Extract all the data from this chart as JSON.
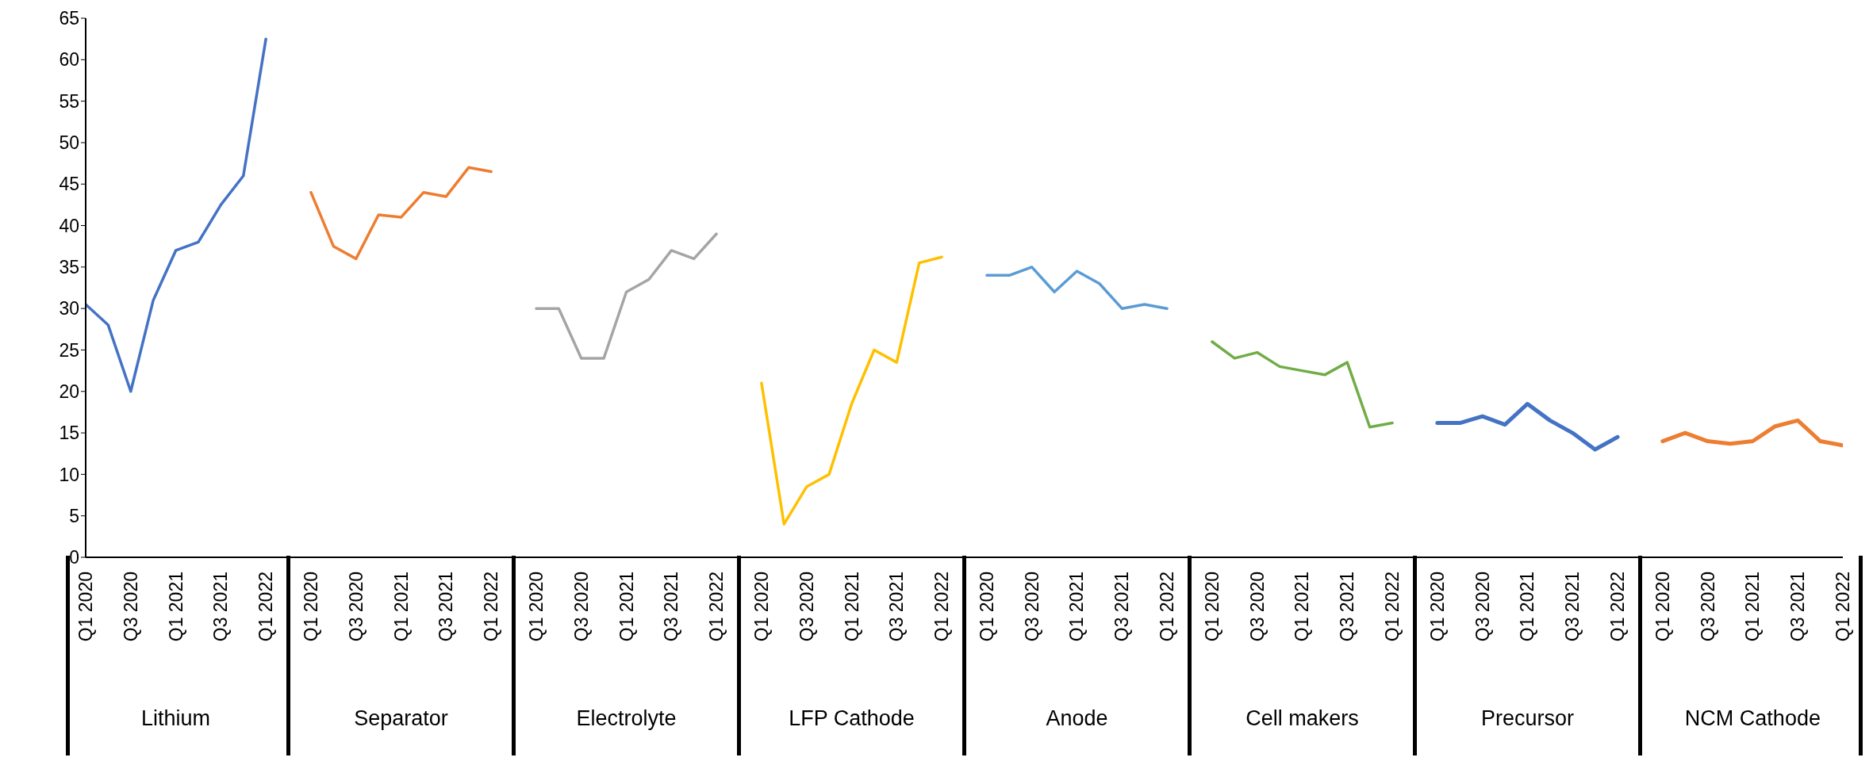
{
  "chart_data": {
    "type": "line",
    "categories": [
      "Q1 2020",
      null,
      "Q3 2020",
      null,
      "Q1 2021",
      null,
      "Q3 2021",
      null,
      "Q1 2022",
      null,
      "Q1 2020",
      null,
      "Q3 2020",
      null,
      "Q1 2021",
      null,
      "Q3 2021",
      null,
      "Q1 2022",
      null,
      "Q1 2020",
      null,
      "Q3 2020",
      null,
      "Q1 2021",
      null,
      "Q3 2021",
      null,
      "Q1 2022",
      null,
      "Q1 2020",
      null,
      "Q3 2020",
      null,
      "Q1 2021",
      null,
      "Q3 2021",
      null,
      "Q1 2022",
      null,
      "Q1 2020",
      null,
      "Q3 2020",
      null,
      "Q1 2021",
      null,
      "Q3 2021",
      null,
      "Q1 2022",
      null,
      "Q1 2020",
      null,
      "Q3 2020",
      null,
      "Q1 2021",
      null,
      "Q3 2021",
      null,
      "Q1 2022",
      null,
      "Q1 2020",
      null,
      "Q3 2020",
      null,
      "Q1 2021",
      null,
      "Q3 2021",
      null,
      "Q1 2022",
      null,
      "Q1 2020",
      null,
      "Q3 2020",
      null,
      "Q1 2021",
      null,
      "Q3 2021",
      null,
      "Q1 2022"
    ],
    "series": [
      {
        "color": "#4472c4",
        "values": [
          30.5,
          28,
          20,
          31,
          37,
          38,
          42.5,
          46,
          62.5,
          null,
          null,
          null,
          null,
          null,
          null,
          null,
          null,
          null,
          null,
          null,
          null,
          null,
          null,
          null,
          null,
          null,
          null,
          null,
          null,
          null,
          null,
          null,
          null,
          null,
          null,
          null,
          null,
          null,
          null,
          null,
          null,
          null,
          null,
          null,
          null,
          null,
          null,
          null,
          null,
          null,
          null,
          null,
          null,
          null,
          null,
          null,
          null,
          null,
          null,
          null,
          null,
          null,
          null,
          null,
          null,
          null,
          null,
          null,
          null,
          null,
          null,
          null,
          null,
          null,
          null,
          null,
          null,
          null,
          null
        ]
      },
      {
        "color": "#ed7d31",
        "values": [
          null,
          null,
          null,
          null,
          null,
          null,
          null,
          null,
          null,
          null,
          44,
          37.5,
          36,
          41.3,
          41,
          44,
          43.5,
          47,
          46.5,
          null,
          null,
          null,
          null,
          null,
          null,
          null,
          null,
          null,
          null,
          null,
          null,
          null,
          null,
          null,
          null,
          null,
          null,
          null,
          null,
          null,
          null,
          null,
          null,
          null,
          null,
          null,
          null,
          null,
          null,
          null,
          null,
          null,
          null,
          null,
          null,
          null,
          null,
          null,
          null,
          null,
          null,
          null,
          null,
          null,
          null,
          null,
          null,
          null,
          null,
          null,
          null,
          null,
          null,
          null,
          null,
          null,
          null,
          null,
          null
        ]
      },
      {
        "color": "#a5a5a5",
        "values": [
          null,
          null,
          null,
          null,
          null,
          null,
          null,
          null,
          null,
          null,
          null,
          null,
          null,
          null,
          null,
          null,
          null,
          null,
          null,
          null,
          30,
          30,
          24,
          24,
          32,
          33.5,
          37,
          36,
          39,
          null,
          null,
          null,
          null,
          null,
          null,
          null,
          null,
          null,
          null,
          null,
          null,
          null,
          null,
          null,
          null,
          null,
          null,
          null,
          null,
          null,
          null,
          null,
          null,
          null,
          null,
          null,
          null,
          null,
          null,
          null,
          null,
          null,
          null,
          null,
          null,
          null,
          null,
          null,
          null,
          null,
          null,
          null,
          null,
          null,
          null,
          null,
          null,
          null,
          null
        ]
      },
      {
        "color": "#ffc000",
        "values": [
          null,
          null,
          null,
          null,
          null,
          null,
          null,
          null,
          null,
          null,
          null,
          null,
          null,
          null,
          null,
          null,
          null,
          null,
          null,
          null,
          null,
          null,
          null,
          null,
          null,
          null,
          null,
          null,
          null,
          null,
          21,
          4,
          8.5,
          10,
          18.5,
          25,
          23.5,
          35.5,
          36.2,
          null,
          null,
          null,
          null,
          null,
          null,
          null,
          null,
          null,
          null,
          null,
          null,
          null,
          null,
          null,
          null,
          null,
          null,
          null,
          null,
          null,
          null,
          null,
          null,
          null,
          null,
          null,
          null,
          null,
          null,
          null,
          null,
          null,
          null,
          null,
          null,
          null,
          null,
          null,
          null
        ]
      },
      {
        "color": "#5b9bd5",
        "values": [
          null,
          null,
          null,
          null,
          null,
          null,
          null,
          null,
          null,
          null,
          null,
          null,
          null,
          null,
          null,
          null,
          null,
          null,
          null,
          null,
          null,
          null,
          null,
          null,
          null,
          null,
          null,
          null,
          null,
          null,
          null,
          null,
          null,
          null,
          null,
          null,
          null,
          null,
          null,
          null,
          34,
          34,
          35,
          32,
          34.5,
          33,
          30,
          30.5,
          30,
          null,
          null,
          null,
          null,
          null,
          null,
          null,
          null,
          null,
          null,
          null,
          null,
          null,
          null,
          null,
          null,
          null,
          null,
          null,
          null,
          null,
          null,
          null,
          null,
          null,
          null,
          null,
          null,
          null,
          null
        ]
      },
      {
        "color": "#70ad47",
        "values": [
          null,
          null,
          null,
          null,
          null,
          null,
          null,
          null,
          null,
          null,
          null,
          null,
          null,
          null,
          null,
          null,
          null,
          null,
          null,
          null,
          null,
          null,
          null,
          null,
          null,
          null,
          null,
          null,
          null,
          null,
          null,
          null,
          null,
          null,
          null,
          null,
          null,
          null,
          null,
          null,
          null,
          null,
          null,
          null,
          null,
          null,
          null,
          null,
          null,
          null,
          26,
          24,
          24.7,
          23,
          22.5,
          22,
          23.5,
          15.7,
          16.2,
          null,
          null,
          null,
          null,
          null,
          null,
          null,
          null,
          null,
          null,
          null,
          null,
          null,
          null,
          null,
          null,
          null,
          null,
          null,
          null
        ]
      },
      {
        "color": "#4472c4",
        "values": [
          null,
          null,
          null,
          null,
          null,
          null,
          null,
          null,
          null,
          null,
          null,
          null,
          null,
          null,
          null,
          null,
          null,
          null,
          null,
          null,
          null,
          null,
          null,
          null,
          null,
          null,
          null,
          null,
          null,
          null,
          null,
          null,
          null,
          null,
          null,
          null,
          null,
          null,
          null,
          null,
          null,
          null,
          null,
          null,
          null,
          null,
          null,
          null,
          null,
          null,
          null,
          null,
          null,
          null,
          null,
          null,
          null,
          null,
          null,
          null,
          16.2,
          16.2,
          17,
          16,
          18.5,
          16.5,
          15,
          13,
          14.5,
          null,
          null,
          null,
          null,
          null,
          null,
          null,
          null,
          null,
          null
        ]
      },
      {
        "color": "#ed7d31",
        "values": [
          null,
          null,
          null,
          null,
          null,
          null,
          null,
          null,
          null,
          null,
          null,
          null,
          null,
          null,
          null,
          null,
          null,
          null,
          null,
          null,
          null,
          null,
          null,
          null,
          null,
          null,
          null,
          null,
          null,
          null,
          null,
          null,
          null,
          null,
          null,
          null,
          null,
          null,
          null,
          null,
          null,
          null,
          null,
          null,
          null,
          null,
          null,
          null,
          null,
          null,
          null,
          null,
          null,
          null,
          null,
          null,
          null,
          null,
          null,
          null,
          null,
          null,
          null,
          null,
          null,
          null,
          null,
          null,
          null,
          null,
          14,
          15,
          14,
          13.7,
          14,
          15.8,
          16.5,
          14,
          13.5
        ]
      }
    ],
    "annotations": [
      "Lithium",
      "Separator",
      "Electrolyte",
      "LFP Cathode",
      "Anode",
      "Cell makers",
      "Precursor",
      "NCM Cathode"
    ],
    "ylim": [
      0,
      65
    ],
    "yticks": [
      0,
      5,
      10,
      15,
      20,
      25,
      30,
      35,
      40,
      45,
      50,
      55,
      60,
      65
    ],
    "grid": false,
    "legend": false
  }
}
